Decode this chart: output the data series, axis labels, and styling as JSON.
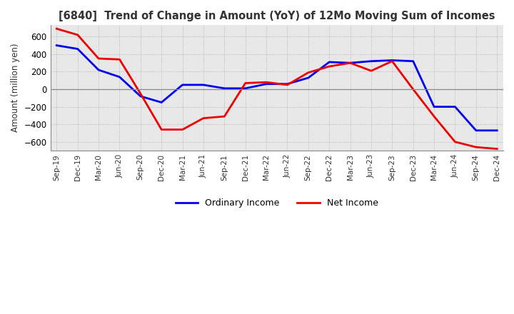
{
  "title": "[6840]  Trend of Change in Amount (YoY) of 12Mo Moving Sum of Incomes",
  "ylabel": "Amount (million yen)",
  "ylim": [
    -700,
    730
  ],
  "yticks": [
    -600,
    -400,
    -200,
    0,
    200,
    400,
    600
  ],
  "x_labels": [
    "Sep-19",
    "Dec-19",
    "Mar-20",
    "Jun-20",
    "Sep-20",
    "Dec-20",
    "Mar-21",
    "Jun-21",
    "Sep-21",
    "Dec-21",
    "Mar-22",
    "Jun-22",
    "Sep-22",
    "Dec-22",
    "Mar-23",
    "Jun-23",
    "Sep-23",
    "Dec-23",
    "Mar-24",
    "Jun-24",
    "Sep-24",
    "Dec-24"
  ],
  "ordinary_income": [
    500,
    460,
    220,
    140,
    -80,
    -150,
    50,
    50,
    10,
    10,
    60,
    60,
    130,
    310,
    300,
    320,
    330,
    320,
    -200,
    -200,
    -470,
    -470
  ],
  "net_income": [
    690,
    620,
    350,
    340,
    -50,
    -460,
    -460,
    -330,
    -310,
    70,
    80,
    50,
    190,
    260,
    300,
    210,
    320,
    0,
    -310,
    -600,
    -660,
    -680
  ],
  "ordinary_color": "#0000ee",
  "net_color": "#ee0000",
  "line_width": 2.0,
  "background_color": "#ffffff",
  "plot_bg_color": "#e8e8e8",
  "grid_color": "#aaaaaa",
  "legend_labels": [
    "Ordinary Income",
    "Net Income"
  ]
}
